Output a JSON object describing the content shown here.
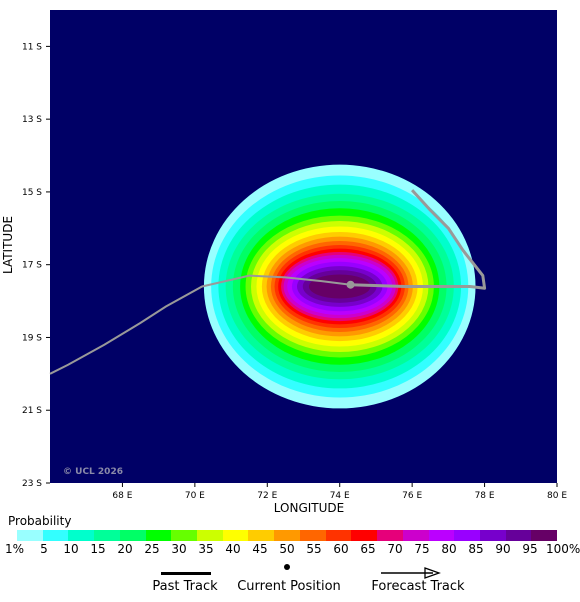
{
  "map": {
    "background_color": "#000066",
    "x_axis_title": "LONGITUDE",
    "y_axis_title": "LATITUDE",
    "x_ticks": [
      {
        "value": 68,
        "label": "68 E"
      },
      {
        "value": 70,
        "label": "70 E"
      },
      {
        "value": 72,
        "label": "72 E"
      },
      {
        "value": 74,
        "label": "74 E"
      },
      {
        "value": 76,
        "label": "76 E"
      },
      {
        "value": 78,
        "label": "78 E"
      },
      {
        "value": 80,
        "label": "80 E"
      }
    ],
    "y_ticks": [
      {
        "value": -11,
        "label": "11 S"
      },
      {
        "value": -13,
        "label": "13 S"
      },
      {
        "value": -15,
        "label": "15 S"
      },
      {
        "value": -17,
        "label": "17 S"
      },
      {
        "value": -19,
        "label": "19 S"
      },
      {
        "value": -21,
        "label": "21 S"
      },
      {
        "value": -23,
        "label": "23 S"
      }
    ],
    "lon_range": [
      66,
      80
    ],
    "lat_range": [
      -23,
      -10
    ],
    "copyright": "© UCL 2026",
    "strike_probability": {
      "center_lon": 74.0,
      "center_lat": -17.6,
      "bands": [
        {
          "threshold": "1%",
          "color": "#99ffff",
          "radius_lon": 3.75,
          "radius_lat": 3.35
        },
        {
          "threshold": "5",
          "color": "#33ffff",
          "radius_lon": 3.55,
          "radius_lat": 3.05
        },
        {
          "threshold": "10",
          "color": "#00ffcc",
          "radius_lon": 3.35,
          "radius_lat": 2.8
        },
        {
          "threshold": "15",
          "color": "#00ff99",
          "radius_lon": 3.15,
          "radius_lat": 2.55
        },
        {
          "threshold": "20",
          "color": "#00ff66",
          "radius_lon": 2.95,
          "radius_lat": 2.35
        },
        {
          "threshold": "25",
          "color": "#00ff00",
          "radius_lon": 2.75,
          "radius_lat": 2.15
        },
        {
          "threshold": "30",
          "color": "#66ff00",
          "radius_lon": 2.6,
          "radius_lat": 1.95
        },
        {
          "threshold": "35",
          "color": "#ccff00",
          "radius_lon": 2.45,
          "radius_lat": 1.8
        },
        {
          "threshold": "40",
          "color": "#ffff00",
          "radius_lon": 2.3,
          "radius_lat": 1.65
        },
        {
          "threshold": "45",
          "color": "#ffcc00",
          "radius_lon": 2.15,
          "radius_lat": 1.5
        },
        {
          "threshold": "50",
          "color": "#ff9900",
          "radius_lon": 2.02,
          "radius_lat": 1.37
        },
        {
          "threshold": "55",
          "color": "#ff6600",
          "radius_lon": 1.9,
          "radius_lat": 1.25
        },
        {
          "threshold": "60",
          "color": "#ff3300",
          "radius_lon": 1.8,
          "radius_lat": 1.14
        },
        {
          "threshold": "65",
          "color": "#ff0000",
          "radius_lon": 1.7,
          "radius_lat": 1.04
        },
        {
          "threshold": "70",
          "color": "#e6007a",
          "radius_lon": 1.62,
          "radius_lat": 0.95
        },
        {
          "threshold": "75",
          "color": "#cc00cc",
          "radius_lon": 1.55,
          "radius_lat": 0.87
        },
        {
          "threshold": "80",
          "color": "#bb00ff",
          "radius_lon": 1.45,
          "radius_lat": 0.78
        },
        {
          "threshold": "85",
          "color": "#9900ff",
          "radius_lon": 1.32,
          "radius_lat": 0.68
        },
        {
          "threshold": "90",
          "color": "#7700cc",
          "radius_lon": 1.18,
          "radius_lat": 0.56
        },
        {
          "threshold": "95",
          "color": "#66009a",
          "radius_lon": 1.02,
          "radius_lat": 0.45
        },
        {
          "threshold": "100%",
          "color": "#660066",
          "radius_lon": 0.85,
          "radius_lat": 0.33
        }
      ]
    },
    "past_track": {
      "color": "#999999",
      "points": [
        [
          66,
          -20.0
        ],
        [
          66.5,
          -19.75
        ],
        [
          67.5,
          -19.2
        ],
        [
          68.5,
          -18.6
        ],
        [
          69.2,
          -18.15
        ],
        [
          70.2,
          -17.6
        ],
        [
          71.5,
          -17.3
        ],
        [
          72.5,
          -17.35
        ],
        [
          73.5,
          -17.45
        ],
        [
          74.3,
          -17.55
        ]
      ]
    },
    "forecast_track": {
      "color": "#999999",
      "points": [
        [
          74.3,
          -17.55
        ],
        [
          75.8,
          -17.6
        ],
        [
          77.6,
          -17.6
        ],
        [
          78.0,
          -17.65
        ],
        [
          77.95,
          -17.3
        ],
        [
          77.4,
          -16.6
        ],
        [
          77.0,
          -16.0
        ],
        [
          76.5,
          -15.5
        ],
        [
          76.0,
          -14.95
        ]
      ]
    },
    "current_position": {
      "lon": 74.3,
      "lat": -17.55,
      "color": "#999999"
    }
  },
  "legend": {
    "title": "Probability",
    "labels": [
      "1%",
      "5",
      "10",
      "15",
      "20",
      "25",
      "30",
      "35",
      "40",
      "45",
      "50",
      "55",
      "60",
      "65",
      "70",
      "75",
      "80",
      "85",
      "90",
      "95",
      "100%"
    ],
    "colors": [
      "#99ffff",
      "#33ffff",
      "#00ffcc",
      "#00ff99",
      "#00ff66",
      "#00ff00",
      "#66ff00",
      "#ccff00",
      "#ffff00",
      "#ffcc00",
      "#ff9900",
      "#ff6600",
      "#ff3300",
      "#ff0000",
      "#e6007a",
      "#cc00cc",
      "#bb00ff",
      "#9900ff",
      "#7700cc",
      "#66009a",
      "#660066"
    ]
  },
  "track_legend": {
    "past_track_label": "Past Track",
    "current_position_label": "Current Position",
    "forecast_track_label": "Forecast Track"
  }
}
